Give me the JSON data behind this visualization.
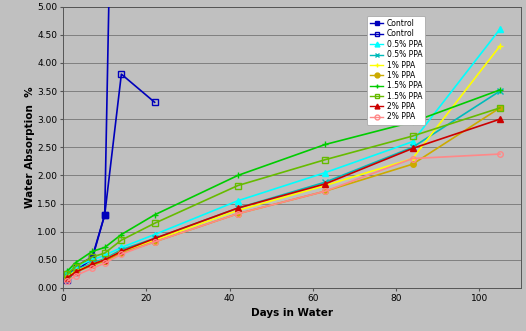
{
  "title": "",
  "xlabel": "Days in Water",
  "ylabel": "Water Absorption  %",
  "xlim": [
    0,
    110
  ],
  "ylim": [
    0.0,
    5.0
  ],
  "yticks": [
    0.0,
    0.5,
    1.0,
    1.5,
    2.0,
    2.5,
    3.0,
    3.5,
    4.0,
    4.5,
    5.0
  ],
  "xticks": [
    0,
    20,
    40,
    60,
    80,
    100
  ],
  "background_color": "#c0c0c0",
  "plot_background": "#c0c0c0",
  "series": [
    {
      "label": "Control",
      "color": "#0000bb",
      "marker": "s",
      "marker_filled": true,
      "marker_size": 4,
      "linewidth": 1.2,
      "x": [
        1,
        3,
        7,
        10,
        11
      ],
      "y": [
        0.22,
        0.38,
        0.55,
        1.3,
        5.1
      ]
    },
    {
      "label": "Control",
      "color": "#0000bb",
      "marker": "s",
      "marker_filled": false,
      "marker_size": 4,
      "linewidth": 1.2,
      "x": [
        1,
        3,
        7,
        10,
        14,
        22
      ],
      "y": [
        0.15,
        0.3,
        0.52,
        1.3,
        3.8,
        3.3
      ]
    },
    {
      "label": "0.5% PPA",
      "color": "#00ffff",
      "marker": "^",
      "marker_filled": true,
      "marker_size": 4,
      "linewidth": 1.2,
      "x": [
        1,
        3,
        7,
        10,
        14,
        22,
        42,
        63,
        84,
        105
      ],
      "y": [
        0.28,
        0.38,
        0.5,
        0.58,
        0.72,
        0.95,
        1.55,
        2.05,
        2.6,
        4.6
      ]
    },
    {
      "label": "0.5% PPA",
      "color": "#00bbbb",
      "marker": "x",
      "marker_filled": true,
      "marker_size": 4,
      "linewidth": 1.2,
      "x": [
        1,
        3,
        7,
        10,
        14,
        22,
        42,
        63,
        84,
        105
      ],
      "y": [
        0.22,
        0.32,
        0.44,
        0.52,
        0.68,
        0.88,
        1.42,
        1.88,
        2.5,
        3.5
      ]
    },
    {
      "label": "1% PPA",
      "color": "#ffff00",
      "marker": "+",
      "marker_filled": true,
      "marker_size": 4,
      "linewidth": 1.2,
      "x": [
        1,
        3,
        7,
        10,
        14,
        22,
        42,
        63,
        84,
        105
      ],
      "y": [
        0.2,
        0.3,
        0.42,
        0.5,
        0.65,
        0.85,
        1.38,
        1.82,
        2.3,
        4.3
      ]
    },
    {
      "label": "1% PPA",
      "color": "#ccaa00",
      "marker": "o",
      "marker_filled": true,
      "marker_size": 4,
      "linewidth": 1.2,
      "x": [
        1,
        3,
        7,
        10,
        14,
        22,
        42,
        63,
        84,
        105
      ],
      "y": [
        0.18,
        0.28,
        0.4,
        0.48,
        0.62,
        0.82,
        1.32,
        1.72,
        2.2,
        3.2
      ]
    },
    {
      "label": "1.5% PPA",
      "color": "#00cc00",
      "marker": "+",
      "marker_filled": true,
      "marker_size": 4,
      "linewidth": 1.2,
      "x": [
        1,
        3,
        7,
        10,
        14,
        22,
        42,
        63,
        84,
        105
      ],
      "y": [
        0.3,
        0.45,
        0.65,
        0.72,
        0.95,
        1.3,
        2.0,
        2.55,
        2.95,
        3.52
      ]
    },
    {
      "label": "1.5% PPA",
      "color": "#66bb00",
      "marker": "s",
      "marker_filled": false,
      "marker_size": 4,
      "linewidth": 1.2,
      "x": [
        1,
        3,
        7,
        10,
        14,
        22,
        42,
        63,
        84,
        105
      ],
      "y": [
        0.25,
        0.38,
        0.55,
        0.62,
        0.85,
        1.15,
        1.82,
        2.28,
        2.7,
        3.2
      ]
    },
    {
      "label": "2% PPA",
      "color": "#cc0000",
      "marker": "^",
      "marker_filled": true,
      "marker_size": 4,
      "linewidth": 1.2,
      "x": [
        1,
        3,
        7,
        10,
        14,
        22,
        42,
        63,
        84,
        105
      ],
      "y": [
        0.18,
        0.28,
        0.42,
        0.5,
        0.65,
        0.88,
        1.42,
        1.85,
        2.48,
        3.0
      ]
    },
    {
      "label": "2% PPA",
      "color": "#ff8888",
      "marker": "o",
      "marker_filled": false,
      "marker_size": 4,
      "linewidth": 1.2,
      "x": [
        1,
        3,
        7,
        10,
        14,
        22,
        42,
        63,
        84,
        105
      ],
      "y": [
        0.12,
        0.22,
        0.35,
        0.44,
        0.6,
        0.82,
        1.32,
        1.72,
        2.3,
        2.38
      ]
    }
  ],
  "legend_entries": [
    {
      "label": "Control",
      "color": "#0000bb",
      "marker": "s",
      "filled": true
    },
    {
      "label": "Control",
      "color": "#0000bb",
      "marker": "s",
      "filled": false
    },
    {
      "label": "0.5% PPA",
      "color": "#00ffff",
      "marker": "^",
      "filled": true
    },
    {
      "label": "0.5% PPA",
      "color": "#00bbbb",
      "marker": "x",
      "filled": true
    },
    {
      "label": "1% PPA",
      "color": "#ffff00",
      "marker": "+",
      "filled": true
    },
    {
      "label": "1% PPA",
      "color": "#ccaa00",
      "marker": "o",
      "filled": true
    },
    {
      "label": "1.5% PPA",
      "color": "#00cc00",
      "marker": "+",
      "filled": true
    },
    {
      "label": "1.5% PPA",
      "color": "#66bb00",
      "marker": "s",
      "filled": false
    },
    {
      "label": "2% PPA",
      "color": "#cc0000",
      "marker": "^",
      "filled": true
    },
    {
      "label": "2% PPA",
      "color": "#ff8888",
      "marker": "o",
      "filled": false
    }
  ]
}
